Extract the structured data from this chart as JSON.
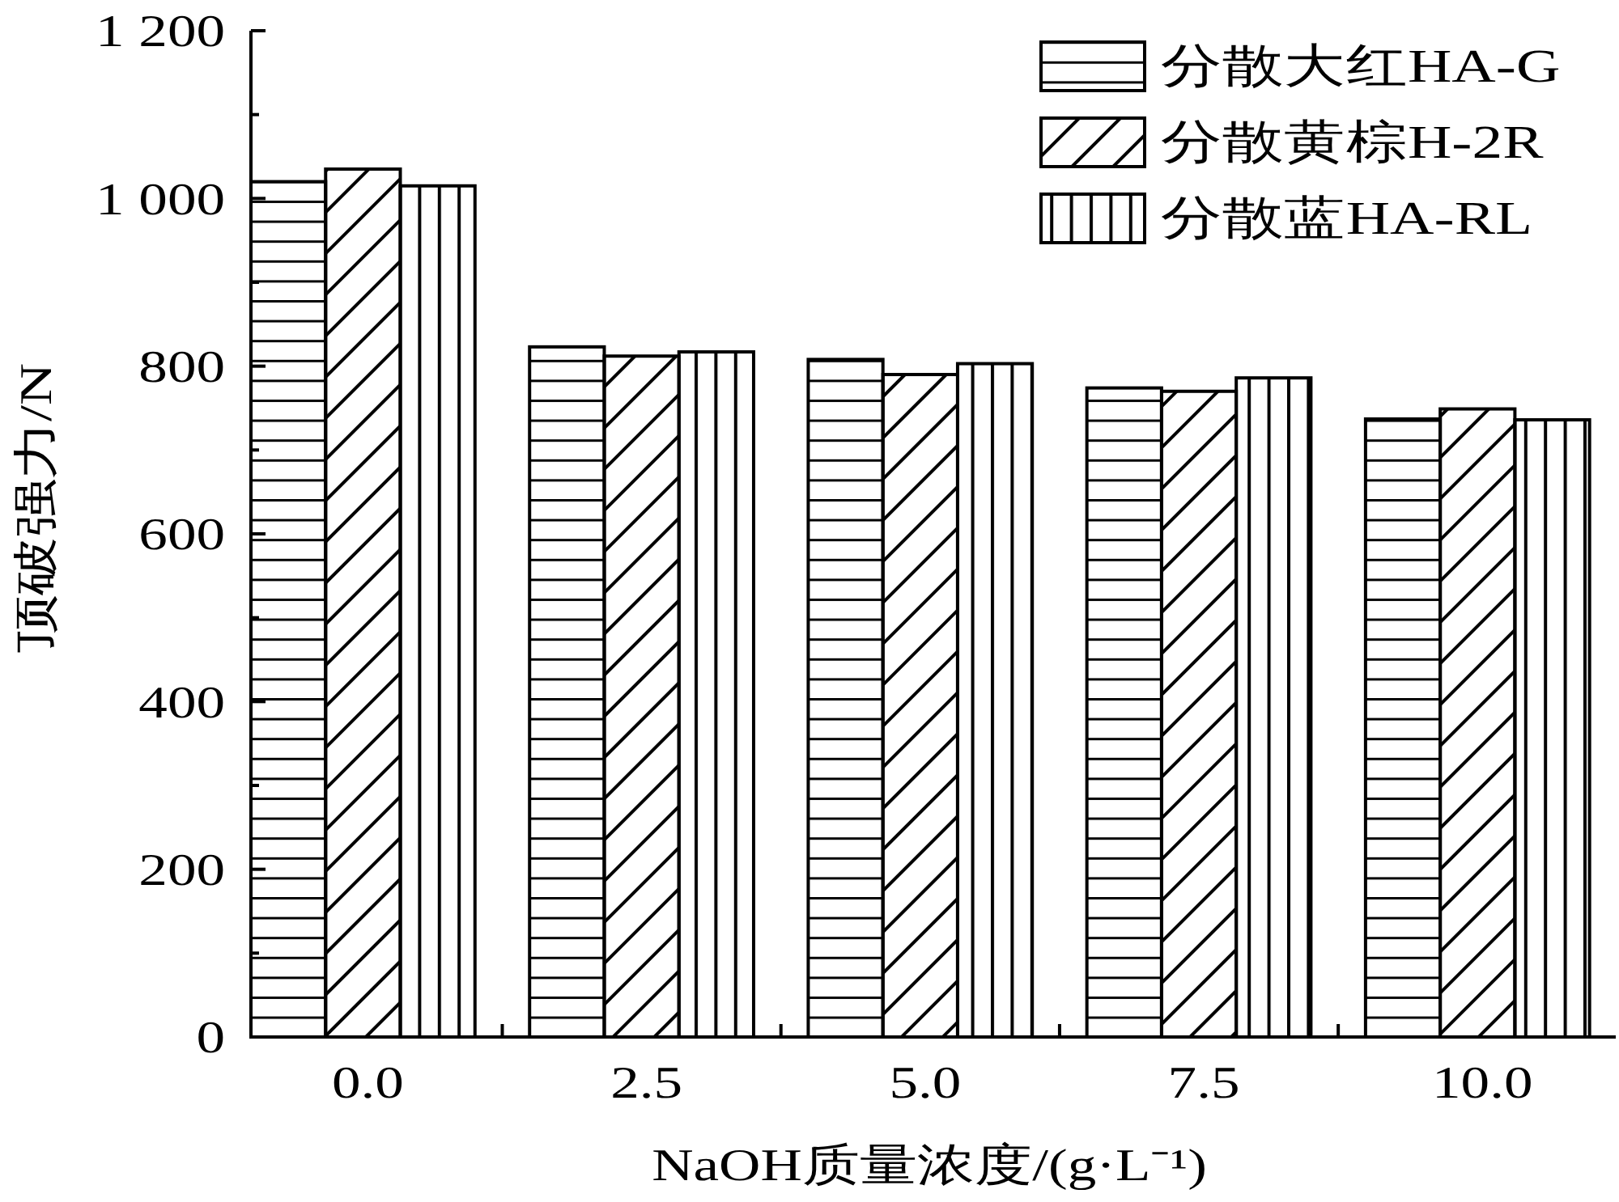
{
  "chart_data": {
    "type": "bar",
    "xlabel": "NaOH质量浓度/(g·L⁻¹)",
    "ylabel": "顶破强力/N",
    "categories": [
      "0.0",
      "2.5",
      "5.0",
      "7.5",
      "10.0"
    ],
    "series": [
      {
        "name": "分散大红HA-G",
        "color": "#000000",
        "values": [
          1020,
          823,
          808,
          774,
          737
        ]
      },
      {
        "name": "分散黄棕H-2R",
        "color": "#000000",
        "values": [
          1035,
          812,
          790,
          770,
          749
        ]
      },
      {
        "name": "分散蓝HA-RL",
        "color": "#000000",
        "values": [
          1015,
          817,
          803,
          786,
          736
        ]
      }
    ],
    "ylim": [
      0,
      1200
    ],
    "yticks": [
      0,
      {
        "value": 100,
        "label": null
      },
      200,
      {
        "value": 300,
        "label": null
      },
      400,
      {
        "value": 500,
        "label": null
      },
      600,
      {
        "value": 700,
        "label": null
      },
      800,
      {
        "value": 900,
        "label": null
      },
      {
        "value": 1000,
        "label": "1 000"
      },
      {
        "value": 1100,
        "label": null
      },
      {
        "value": 1200,
        "label": "1 200"
      }
    ],
    "legend": "top right"
  }
}
